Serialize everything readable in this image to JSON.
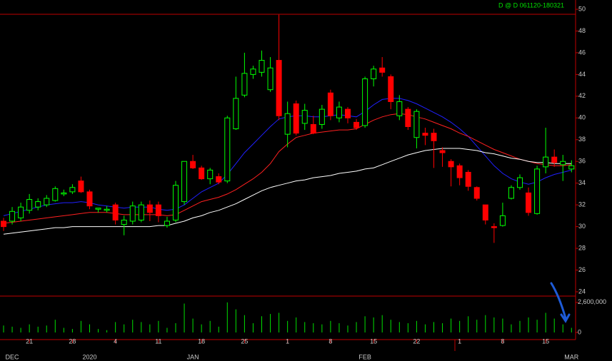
{
  "chart_data": {
    "type": "candlestick",
    "title": "D @ D  061120-180321",
    "categories": [
      null,
      null,
      null,
      "21",
      null,
      null,
      null,
      null,
      "28",
      null,
      null,
      null,
      null,
      "4",
      null,
      null,
      null,
      null,
      "11",
      null,
      null,
      null,
      null,
      "18",
      null,
      null,
      null,
      null,
      "25",
      null,
      null,
      null,
      null,
      "1",
      null,
      null,
      null,
      null,
      "8",
      null,
      null,
      null,
      null,
      "15",
      null,
      null,
      null,
      null,
      "22",
      null,
      null,
      null,
      null,
      "1",
      null,
      null,
      null,
      null,
      "8",
      null,
      null,
      null,
      null,
      "15",
      null,
      null,
      null
    ],
    "month_labels": [
      null,
      "DEC",
      null,
      null,
      null,
      null,
      null,
      null,
      null,
      null,
      "2020",
      null,
      null,
      null,
      null,
      null,
      null,
      null,
      null,
      null,
      null,
      null,
      "JAN",
      null,
      null,
      null,
      null,
      null,
      null,
      null,
      null,
      null,
      null,
      null,
      null,
      null,
      null,
      null,
      null,
      null,
      null,
      null,
      "FEB",
      null,
      null,
      null,
      null,
      null,
      null,
      null,
      null,
      null,
      null,
      null,
      null,
      null,
      null,
      null,
      null,
      null,
      null,
      null,
      null,
      null,
      null,
      null,
      "MAR"
    ],
    "open": [
      30.5,
      30.5,
      30.8,
      31.5,
      31.8,
      32.0,
      32.4,
      33.0,
      33.2,
      34.2,
      33.2,
      31.6,
      31.5,
      32.0,
      30.2,
      30.5,
      30.6,
      32.0,
      32.0,
      30.1,
      30.6,
      32.3,
      36.0,
      35.4,
      34.4,
      34.6,
      34.2,
      39.0,
      42.1,
      44.0,
      44.2,
      42.6,
      45.3,
      38.5,
      41.3,
      39.5,
      39.4,
      39.4,
      42.3,
      40.0,
      40.8,
      39.6,
      39.3,
      43.6,
      44.6,
      43.8,
      40.2,
      40.8,
      38.2,
      38.6,
      38.6,
      37.0,
      36.0,
      35.6,
      35.0,
      33.6,
      32.0,
      30.0,
      30.1,
      32.6,
      33.6,
      33.1,
      31.2,
      35.5,
      36.4,
      35.7,
      35.3
    ],
    "high": [
      30.8,
      31.8,
      32.2,
      33.0,
      32.6,
      32.9,
      33.7,
      33.4,
      33.9,
      34.6,
      33.4,
      31.7,
      31.9,
      32.2,
      31.0,
      32.3,
      32.3,
      32.4,
      32.3,
      30.9,
      34.2,
      36.0,
      36.6,
      35.6,
      35.4,
      34.9,
      40.2,
      43.8,
      46.0,
      44.8,
      46.2,
      45.6,
      49.5,
      41.5,
      41.6,
      41.3,
      40.2,
      41.2,
      42.6,
      41.5,
      41.0,
      39.9,
      43.8,
      44.8,
      45.6,
      44.0,
      42.1,
      41.0,
      40.8,
      39.1,
      39.0,
      37.3,
      36.2,
      35.8,
      35.2,
      33.7,
      32.0,
      30.3,
      32.2,
      33.8,
      34.8,
      33.6,
      35.6,
      39.1,
      37.1,
      36.6,
      36.1
    ],
    "low": [
      29.6,
      30.2,
      30.5,
      31.2,
      31.5,
      31.8,
      32.3,
      32.8,
      33.0,
      33.1,
      31.6,
      31.3,
      31.3,
      30.2,
      29.2,
      30.2,
      30.4,
      30.5,
      30.4,
      29.9,
      30.4,
      32.0,
      35.3,
      34.3,
      33.9,
      33.9,
      34.0,
      38.9,
      41.9,
      43.6,
      43.8,
      42.4,
      39.8,
      37.3,
      38.4,
      38.9,
      38.5,
      39.0,
      39.8,
      39.6,
      39.5,
      38.9,
      39.1,
      42.9,
      43.8,
      40.8,
      39.8,
      38.9,
      37.2,
      37.5,
      35.4,
      35.5,
      33.7,
      33.8,
      33.3,
      32.4,
      30.2,
      28.5,
      30.0,
      32.5,
      33.4,
      31.0,
      31.1,
      34.9,
      35.5,
      34.2,
      35.0
    ],
    "close": [
      30.0,
      31.4,
      31.8,
      32.5,
      32.3,
      32.6,
      33.5,
      33.1,
      33.6,
      33.2,
      31.9,
      31.7,
      31.6,
      30.6,
      30.6,
      31.9,
      32.0,
      31.3,
      31.0,
      30.5,
      33.8,
      36.0,
      35.4,
      34.4,
      35.2,
      34.1,
      40.0,
      41.8,
      44.1,
      44.5,
      45.3,
      44.6,
      40.2,
      40.4,
      38.6,
      40.7,
      38.6,
      40.8,
      40.2,
      41.0,
      40.0,
      39.1,
      43.6,
      44.5,
      44.2,
      41.5,
      41.5,
      39.2,
      40.6,
      38.4,
      37.9,
      36.8,
      35.5,
      34.5,
      33.7,
      32.6,
      30.6,
      29.9,
      31.0,
      33.6,
      34.5,
      31.3,
      35.3,
      36.4,
      35.9,
      36.0,
      35.6
    ],
    "up_color": "#00ff00",
    "down_color": "#ff0000",
    "series": [
      {
        "color": "#2020ff",
        "values": [
          31.0,
          31.2,
          31.4,
          31.6,
          31.8,
          32.0,
          32.1,
          32.2,
          32.2,
          32.3,
          32.2,
          32.0,
          31.9,
          31.8,
          31.7,
          31.8,
          31.8,
          31.8,
          31.6,
          31.5,
          31.6,
          32.0,
          32.6,
          33.2,
          33.6,
          34.0,
          34.8,
          35.8,
          36.8,
          37.6,
          38.4,
          39.2,
          39.9,
          40.1,
          40.2,
          40.2,
          40.1,
          40.1,
          40.2,
          40.3,
          40.2,
          40.1,
          40.6,
          41.2,
          41.7,
          41.8,
          41.8,
          41.6,
          41.3,
          40.9,
          40.5,
          40.1,
          39.6,
          39.0,
          38.3,
          37.4,
          36.5,
          35.6,
          34.9,
          34.4,
          34.1,
          33.9,
          34.1,
          34.5,
          34.8,
          35.0,
          35.2
        ]
      },
      {
        "color": "#ff2020",
        "values": [
          30.3,
          30.4,
          30.5,
          30.6,
          30.7,
          30.8,
          30.9,
          31.0,
          31.1,
          31.2,
          31.3,
          31.3,
          31.3,
          31.2,
          31.1,
          31.1,
          31.1,
          31.1,
          31.1,
          31.0,
          31.1,
          31.5,
          31.9,
          32.3,
          32.5,
          32.7,
          33.0,
          33.4,
          33.9,
          34.4,
          35.0,
          35.8,
          36.9,
          37.6,
          38.2,
          38.4,
          38.6,
          38.7,
          38.8,
          38.9,
          38.9,
          39.0,
          39.4,
          39.8,
          40.1,
          40.3,
          40.4,
          40.3,
          40.1,
          39.9,
          39.6,
          39.3,
          39.0,
          38.6,
          38.3,
          37.9,
          37.5,
          37.1,
          36.8,
          36.5,
          36.2,
          36.0,
          35.8,
          35.7,
          35.6,
          35.6,
          35.7
        ]
      },
      {
        "color": "#ffffff",
        "values": [
          29.3,
          29.4,
          29.5,
          29.6,
          29.7,
          29.8,
          29.9,
          29.9,
          30.0,
          30.0,
          30.0,
          30.0,
          30.0,
          30.0,
          30.0,
          30.0,
          30.0,
          30.0,
          30.1,
          30.1,
          30.3,
          30.5,
          30.8,
          31.0,
          31.3,
          31.5,
          31.8,
          32.1,
          32.5,
          32.9,
          33.3,
          33.6,
          33.8,
          34.0,
          34.2,
          34.3,
          34.5,
          34.6,
          34.7,
          34.9,
          35.0,
          35.1,
          35.3,
          35.4,
          35.7,
          36.0,
          36.3,
          36.6,
          36.8,
          37.0,
          37.1,
          37.2,
          37.2,
          37.2,
          37.1,
          37.0,
          36.8,
          36.7,
          36.5,
          36.3,
          36.2,
          36.0,
          35.9,
          35.9,
          35.8,
          35.8,
          35.8
        ]
      }
    ],
    "ylim": [
      24,
      50
    ],
    "yticks": [
      24,
      26,
      28,
      30,
      32,
      34,
      36,
      38,
      40,
      42,
      44,
      46,
      48,
      50
    ],
    "volume": {
      "color": "#00e000",
      "values": [
        600000,
        500000,
        400000,
        700000,
        500000,
        600000,
        1100000,
        400000,
        300000,
        1000000,
        700000,
        300000,
        200000,
        900000,
        700000,
        1100000,
        900000,
        700000,
        1000000,
        400000,
        800000,
        2500000,
        1200000,
        700000,
        1000000,
        500000,
        2600000,
        2000000,
        1500000,
        800000,
        1400000,
        1600000,
        1700000,
        1000000,
        1300000,
        900000,
        800000,
        700000,
        1000000,
        800000,
        600000,
        900000,
        1400000,
        1300000,
        1500000,
        1100000,
        900000,
        800000,
        1000000,
        700000,
        900000,
        800000,
        1200000,
        1000000,
        1400000,
        1100000,
        1500000,
        1300000,
        1200000,
        700000,
        1000000,
        1300000,
        1100000,
        1700000,
        1200000,
        700000,
        400000
      ],
      "ylim": [
        0,
        2900000
      ],
      "yticks": [
        0,
        {
          "value": 2600000,
          "label": "2,600,000"
        }
      ]
    }
  }
}
